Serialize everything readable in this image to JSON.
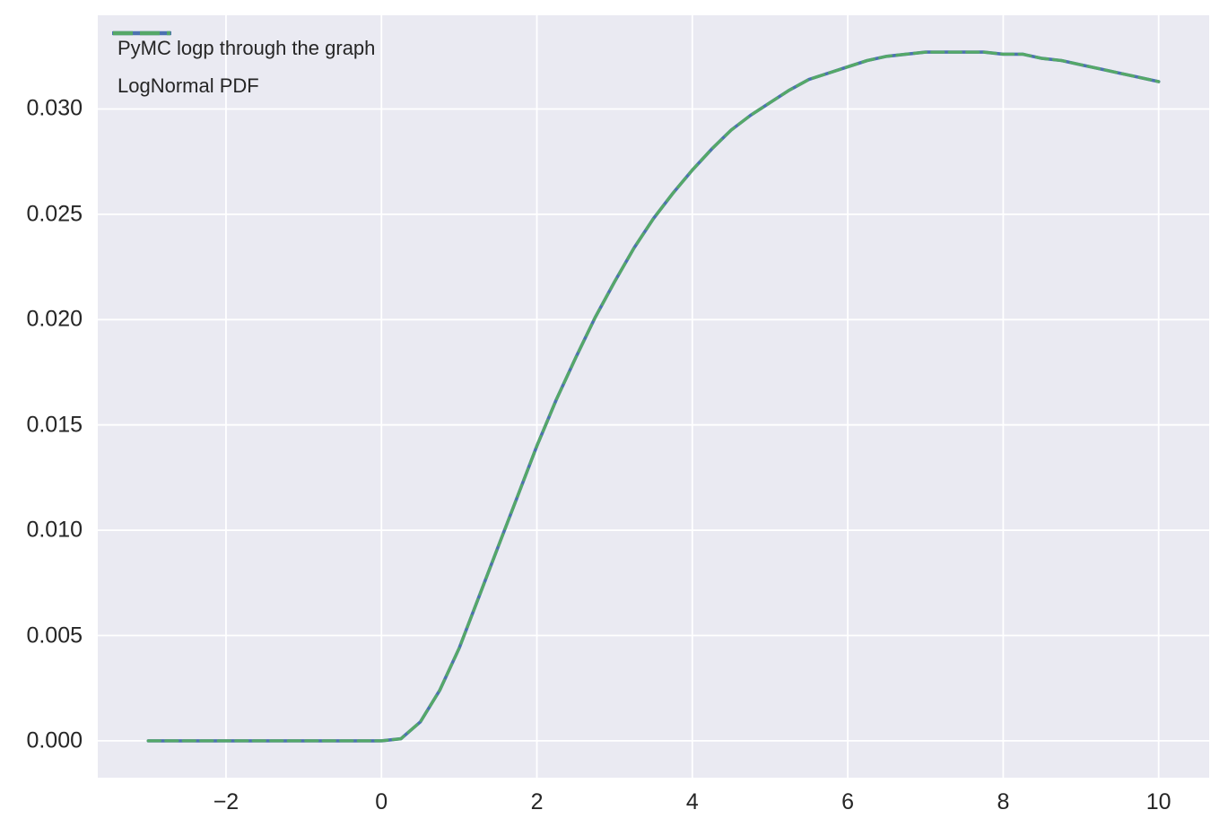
{
  "figure": {
    "background_color": "#ffffff",
    "axes_background_color": "#eaeaf2",
    "grid_color": "#ffffff",
    "text_color": "#262626"
  },
  "legend": {
    "position": "upper left",
    "frame": false,
    "items": [
      {
        "label": "PyMC logp through the graph",
        "color": "#4c72b0",
        "style": "solid"
      },
      {
        "label": "LogNormal PDF",
        "color": "#55a868",
        "style": "dashed"
      }
    ]
  },
  "chart_data": {
    "type": "line",
    "title": "",
    "xlabel": "",
    "ylabel": "",
    "grid": true,
    "xlim": [
      -3.65,
      10.65
    ],
    "ylim": [
      -0.00175,
      0.03445
    ],
    "xticks": {
      "values": [
        -2,
        0,
        2,
        4,
        6,
        8,
        10
      ],
      "labels": [
        "−2",
        "0",
        "2",
        "4",
        "6",
        "8",
        "10"
      ]
    },
    "yticks": {
      "values": [
        0.0,
        0.005,
        0.01,
        0.015,
        0.02,
        0.025,
        0.03
      ],
      "labels": [
        "0.000",
        "0.005",
        "0.010",
        "0.015",
        "0.020",
        "0.025",
        "0.030"
      ]
    },
    "x": [
      -3,
      -2.75,
      -2.5,
      -2.25,
      -2,
      -1.75,
      -1.5,
      -1.25,
      -1,
      -0.75,
      -0.5,
      -0.25,
      0,
      0.25,
      0.5,
      0.75,
      1,
      1.25,
      1.5,
      1.75,
      2,
      2.25,
      2.5,
      2.75,
      3,
      3.25,
      3.5,
      3.75,
      4,
      4.25,
      4.5,
      4.75,
      5,
      5.25,
      5.5,
      5.75,
      6,
      6.25,
      6.5,
      6.75,
      7,
      7.25,
      7.5,
      7.75,
      8,
      8.25,
      8.5,
      8.75,
      9,
      9.25,
      9.5,
      9.75,
      10
    ],
    "series": [
      {
        "name": "PyMC logp through the graph",
        "color": "#4c72b0",
        "style": "solid",
        "line_width": 3.6,
        "values": [
          0,
          0,
          0,
          0,
          0,
          0,
          0,
          0,
          0,
          0,
          0,
          0,
          0,
          0.0001,
          0.0009,
          0.0024,
          0.0044,
          0.0068,
          0.0092,
          0.0116,
          0.014,
          0.0162,
          0.0182,
          0.0201,
          0.0218,
          0.0234,
          0.0248,
          0.026,
          0.0271,
          0.0281,
          0.029,
          0.0297,
          0.0303,
          0.0309,
          0.0314,
          0.0317,
          0.032,
          0.0323,
          0.0325,
          0.0326,
          0.0327,
          0.0327,
          0.0327,
          0.0327,
          0.0326,
          0.0326,
          0.0324,
          0.0323,
          0.0321,
          0.0319,
          0.0317,
          0.0315,
          0.0313
        ]
      },
      {
        "name": "LogNormal PDF",
        "color": "#55a868",
        "style": "dashed",
        "line_width": 3.3,
        "values": [
          0,
          0,
          0,
          0,
          0,
          0,
          0,
          0,
          0,
          0,
          0,
          0,
          0,
          0.0001,
          0.0009,
          0.0024,
          0.0044,
          0.0068,
          0.0092,
          0.0116,
          0.014,
          0.0162,
          0.0182,
          0.0201,
          0.0218,
          0.0234,
          0.0248,
          0.026,
          0.0271,
          0.0281,
          0.029,
          0.0297,
          0.0303,
          0.0309,
          0.0314,
          0.0317,
          0.032,
          0.0323,
          0.0325,
          0.0326,
          0.0327,
          0.0327,
          0.0327,
          0.0327,
          0.0326,
          0.0326,
          0.0324,
          0.0323,
          0.0321,
          0.0319,
          0.0317,
          0.0315,
          0.0313
        ]
      }
    ]
  }
}
